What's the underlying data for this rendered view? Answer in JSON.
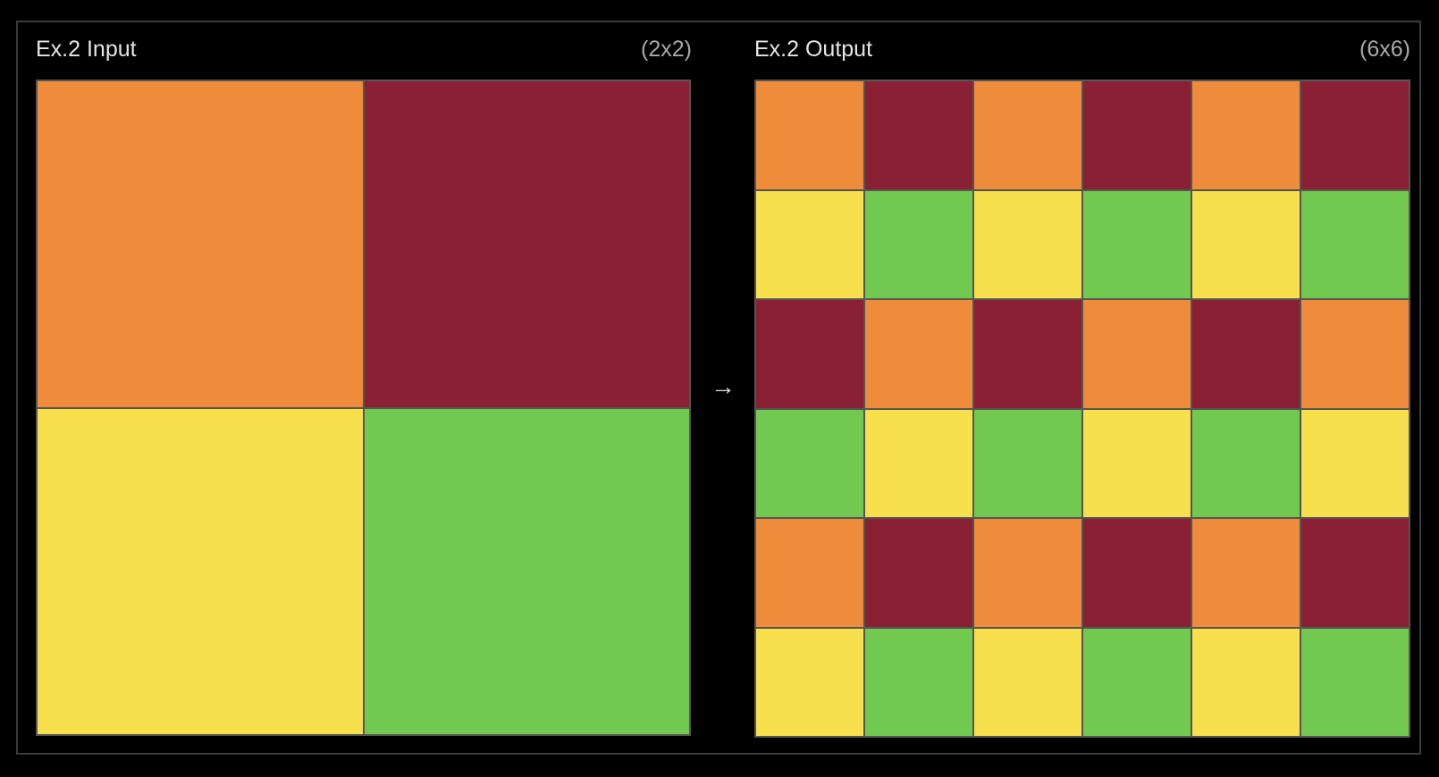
{
  "palette": {
    "O": "#ee8c3b",
    "R": "#8a2033",
    "Y": "#f8df4c",
    "G": "#72c94f"
  },
  "input": {
    "title": "Ex.2 Input",
    "dims": "(2x2)",
    "rows": 2,
    "cols": 2,
    "cells": [
      [
        "O",
        "R"
      ],
      [
        "Y",
        "G"
      ]
    ]
  },
  "arrow": "→",
  "output": {
    "title": "Ex.2 Output",
    "dims": "(6x6)",
    "rows": 6,
    "cols": 6,
    "cells": [
      [
        "O",
        "R",
        "O",
        "R",
        "O",
        "R"
      ],
      [
        "Y",
        "G",
        "Y",
        "G",
        "Y",
        "G"
      ],
      [
        "R",
        "O",
        "R",
        "O",
        "R",
        "O"
      ],
      [
        "G",
        "Y",
        "G",
        "Y",
        "G",
        "Y"
      ],
      [
        "O",
        "R",
        "O",
        "R",
        "O",
        "R"
      ],
      [
        "Y",
        "G",
        "Y",
        "G",
        "Y",
        "G"
      ]
    ]
  }
}
